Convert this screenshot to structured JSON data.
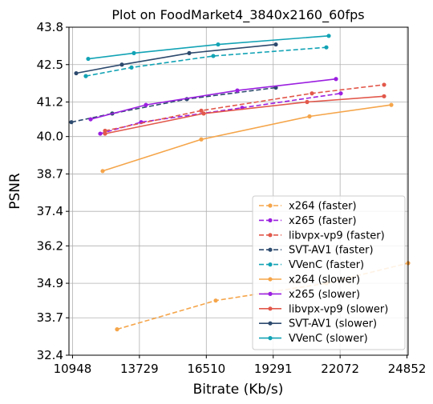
{
  "chart_data": {
    "type": "line",
    "title": "Plot on FoodMarket4_3840x2160_60fps",
    "xlabel": "Bitrate (Kb/s)",
    "ylabel": "PSNR",
    "xlim": [
      10800,
      24900
    ],
    "ylim": [
      32.4,
      43.8
    ],
    "xticks": [
      10948,
      13729,
      16510,
      19291,
      22072,
      24852
    ],
    "xtick_labels": [
      "10948",
      "13729",
      "16510",
      "19291",
      "22072",
      "24852"
    ],
    "yticks": [
      32.4,
      33.7,
      34.9,
      36.2,
      37.4,
      38.7,
      40.0,
      41.2,
      42.5,
      43.8
    ],
    "ytick_labels": [
      "32.4",
      "33.7",
      "34.9",
      "36.2",
      "37.4",
      "38.7",
      "40.0",
      "41.2",
      "42.5",
      "43.8"
    ],
    "grid": true,
    "legend_position": "lower-right",
    "series": [
      {
        "name": "x264 (faster)",
        "color": "#f5a54a",
        "dashed": true,
        "points": [
          [
            12800,
            33.3
          ],
          [
            16900,
            34.3
          ],
          [
            21500,
            34.9
          ],
          [
            24900,
            35.6
          ]
        ]
      },
      {
        "name": "x265 (faster)",
        "color": "#9b1fe0",
        "dashed": true,
        "points": [
          [
            12100,
            40.1
          ],
          [
            13800,
            40.5
          ],
          [
            18000,
            41.0
          ],
          [
            22100,
            41.5
          ]
        ]
      },
      {
        "name": "libvpx-vp9 (faster)",
        "color": "#e2584b",
        "dashed": true,
        "points": [
          [
            12300,
            40.2
          ],
          [
            16300,
            40.9
          ],
          [
            20900,
            41.5
          ],
          [
            23900,
            41.8
          ]
        ]
      },
      {
        "name": "SVT-AV1 (faster)",
        "color": "#2d4a6e",
        "dashed": true,
        "points": [
          [
            10900,
            40.5
          ],
          [
            12600,
            40.8
          ],
          [
            15700,
            41.3
          ],
          [
            19400,
            41.7
          ]
        ]
      },
      {
        "name": "VVenC (faster)",
        "color": "#12a3b5",
        "dashed": true,
        "points": [
          [
            11500,
            42.1
          ],
          [
            13400,
            42.4
          ],
          [
            16800,
            42.8
          ],
          [
            21500,
            43.1
          ]
        ]
      },
      {
        "name": "x264 (slower)",
        "color": "#f5a54a",
        "dashed": false,
        "points": [
          [
            12200,
            38.8
          ],
          [
            16300,
            39.9
          ],
          [
            20800,
            40.7
          ],
          [
            24200,
            41.1
          ]
        ]
      },
      {
        "name": "x265 (slower)",
        "color": "#9b1fe0",
        "dashed": false,
        "points": [
          [
            11700,
            40.6
          ],
          [
            14000,
            41.1
          ],
          [
            17800,
            41.6
          ],
          [
            21900,
            42.0
          ]
        ]
      },
      {
        "name": "libvpx-vp9 (slower)",
        "color": "#e2584b",
        "dashed": false,
        "points": [
          [
            12300,
            40.1
          ],
          [
            16400,
            40.8
          ],
          [
            20700,
            41.2
          ],
          [
            23900,
            41.4
          ]
        ]
      },
      {
        "name": "SVT-AV1 (slower)",
        "color": "#2d4a6e",
        "dashed": false,
        "points": [
          [
            11100,
            42.2
          ],
          [
            13000,
            42.5
          ],
          [
            15800,
            42.9
          ],
          [
            19400,
            43.2
          ]
        ]
      },
      {
        "name": "VVenC (slower)",
        "color": "#12a3b5",
        "dashed": false,
        "points": [
          [
            11600,
            42.7
          ],
          [
            13500,
            42.9
          ],
          [
            17000,
            43.2
          ],
          [
            21600,
            43.5
          ]
        ]
      }
    ]
  }
}
